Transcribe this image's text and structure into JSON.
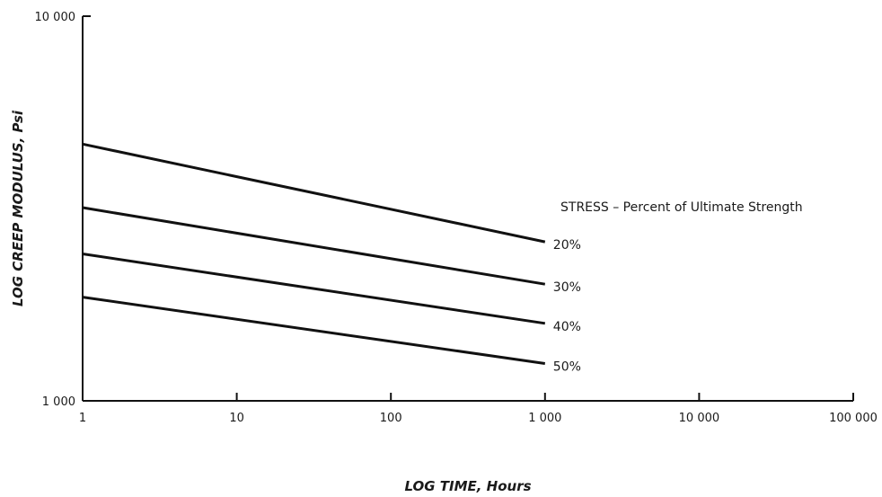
{
  "chart_data": {
    "type": "line",
    "title": "",
    "xlabel": "LOG TIME, Hours",
    "ylabel": "LOG CREEP MODULUS, Psi",
    "x_scale": "log",
    "y_scale": "log",
    "xlim": [
      1,
      100000
    ],
    "ylim": [
      1000,
      10000
    ],
    "x_ticks": [
      {
        "value": 1,
        "label": "1"
      },
      {
        "value": 10,
        "label": "10"
      },
      {
        "value": 100,
        "label": "100"
      },
      {
        "value": 1000,
        "label": "1 000"
      },
      {
        "value": 10000,
        "label": "10 000"
      },
      {
        "value": 100000,
        "label": "100 000"
      }
    ],
    "y_ticks": [
      {
        "value": 1000,
        "label": "1 000"
      },
      {
        "value": 10000,
        "label": "10 000"
      }
    ],
    "grid": false,
    "legend_title": "STRESS – Percent of Ultimate Strength",
    "series": [
      {
        "name": "20%",
        "x": [
          1,
          1000
        ],
        "y": [
          4650,
          2590
        ]
      },
      {
        "name": "30%",
        "x": [
          1,
          1000
        ],
        "y": [
          3180,
          2010
        ]
      },
      {
        "name": "40%",
        "x": [
          1,
          1000
        ],
        "y": [
          2410,
          1590
        ]
      },
      {
        "name": "50%",
        "x": [
          1,
          1000
        ],
        "y": [
          1860,
          1250
        ]
      }
    ],
    "line_color": "#111111"
  }
}
